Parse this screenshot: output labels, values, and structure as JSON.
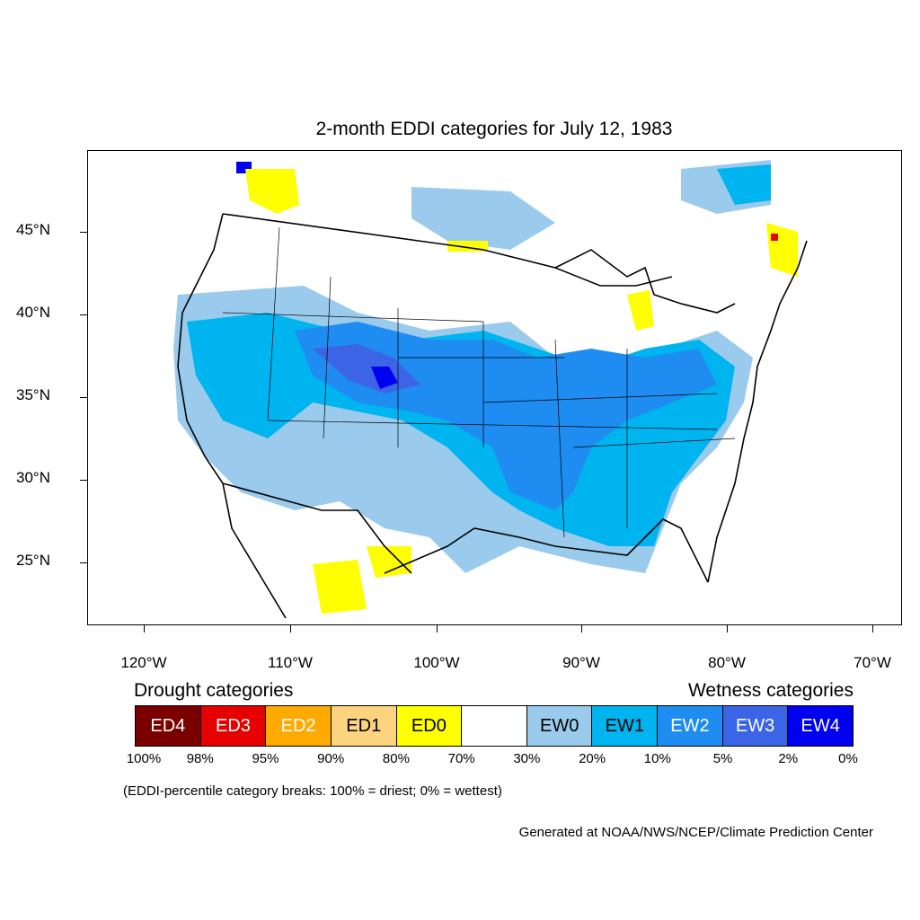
{
  "title": "2-month EDDI categories for July 12, 1983",
  "lat_labels": [
    "45°N",
    "40°N",
    "35°N",
    "30°N",
    "25°N"
  ],
  "lon_labels": [
    "120°W",
    "110°W",
    "100°W",
    "90°W",
    "80°W",
    "70°W"
  ],
  "drought_heading": "Drought categories",
  "wetness_heading": "Wetness categories",
  "legend": [
    {
      "label": "ED4",
      "color": "#7a0000",
      "text_color": "#ffffff"
    },
    {
      "label": "ED3",
      "color": "#e60000",
      "text_color": "#ffffff"
    },
    {
      "label": "ED2",
      "color": "#ffaa00",
      "text_color": "#ffffff"
    },
    {
      "label": "ED1",
      "color": "#fcd37f",
      "text_color": "#000000"
    },
    {
      "label": "ED0",
      "color": "#ffff00",
      "text_color": "#000000"
    },
    {
      "label": "",
      "color": "#ffffff",
      "text_color": "#000000"
    },
    {
      "label": "EW0",
      "color": "#9acbec",
      "text_color": "#000000"
    },
    {
      "label": "EW1",
      "color": "#00b4f0",
      "text_color": "#000000"
    },
    {
      "label": "EW2",
      "color": "#1e8cf0",
      "text_color": "#ffffff"
    },
    {
      "label": "EW3",
      "color": "#3c64e6",
      "text_color": "#ffffff"
    },
    {
      "label": "EW4",
      "color": "#0000f0",
      "text_color": "#ffffff"
    }
  ],
  "breaks": [
    "100%",
    "98%",
    "95%",
    "90%",
    "80%",
    "70%",
    "30%",
    "20%",
    "10%",
    "5%",
    "2%",
    "0%"
  ],
  "note": "(EDDI-percentile category breaks: 100% = driest; 0% = wettest)",
  "credit": "Generated at NOAA/NWS/NCEP/Climate Prediction Center"
}
